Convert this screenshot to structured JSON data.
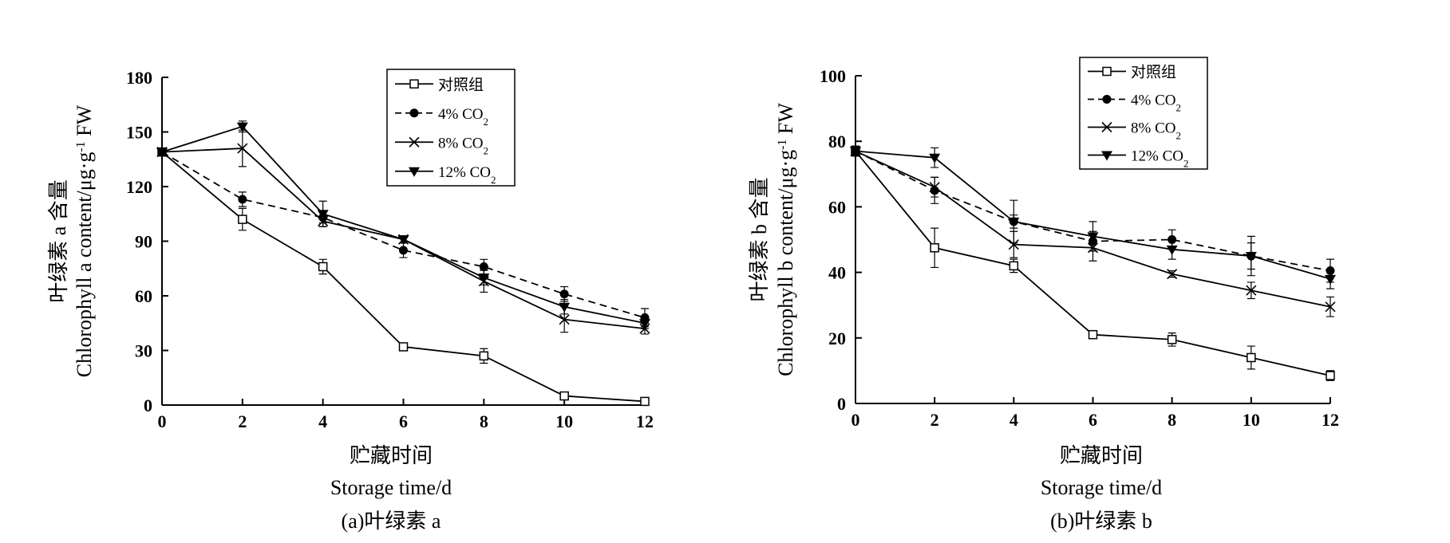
{
  "chart_data": [
    {
      "type": "line",
      "x": [
        0,
        2,
        4,
        6,
        8,
        10,
        12
      ],
      "xlabel_cn": "贮藏时间",
      "xlabel_en": "Storage time/d",
      "ylabel_cn": "叶绿素 a 含量",
      "ylabel_en_prefix": "Chlorophyll a content/μg·g",
      "ylabel_en_sup": "-1",
      "ylabel_en_suffix": " FW",
      "ylim": [
        0,
        180
      ],
      "xlim": [
        0,
        12
      ],
      "yticks": [
        0,
        30,
        60,
        90,
        120,
        150,
        180
      ],
      "xticks": [
        0,
        2,
        4,
        6,
        8,
        10,
        12
      ],
      "caption": "(a)叶绿素 a",
      "legend_position": "top-right",
      "series": [
        {
          "name": "对照组",
          "name_sub": "",
          "marker": "open-square",
          "dash": false,
          "values": [
            139,
            102,
            76,
            32,
            27,
            5,
            2
          ],
          "errors": [
            2,
            6,
            4,
            2,
            4,
            2,
            1
          ]
        },
        {
          "name": "4% CO",
          "name_sub": "2",
          "marker": "filled-circle",
          "dash": true,
          "values": [
            139,
            113,
            103,
            85,
            76,
            61,
            48
          ],
          "errors": [
            2,
            4,
            3,
            4,
            4,
            4,
            5
          ]
        },
        {
          "name": "8% CO",
          "name_sub": "2",
          "marker": "cross",
          "dash": false,
          "values": [
            139,
            141,
            101,
            91,
            68,
            47,
            42
          ],
          "errors": [
            2,
            10,
            3,
            2,
            6,
            7,
            3
          ]
        },
        {
          "name": "12% CO",
          "name_sub": "2",
          "marker": "filled-triangle-down",
          "dash": false,
          "values": [
            139,
            153,
            105,
            91,
            70,
            54,
            45
          ],
          "errors": [
            2,
            3,
            7,
            2,
            4,
            4,
            3
          ]
        }
      ]
    },
    {
      "type": "line",
      "x": [
        0,
        2,
        4,
        6,
        8,
        10,
        12
      ],
      "xlabel_cn": "贮藏时间",
      "xlabel_en": "Storage time/d",
      "ylabel_cn": "叶绿素 b 含量",
      "ylabel_en_prefix": "Chlorophyll b content/μg·g",
      "ylabel_en_sup": "-1",
      "ylabel_en_suffix": " FW",
      "ylim": [
        0,
        100
      ],
      "xlim": [
        0,
        12
      ],
      "yticks": [
        0,
        20,
        40,
        60,
        80,
        100
      ],
      "xticks": [
        0,
        2,
        4,
        6,
        8,
        10,
        12
      ],
      "caption": "(b)叶绿素 b",
      "legend_position": "top-right",
      "series": [
        {
          "name": "对照组",
          "name_sub": "",
          "marker": "open-square",
          "dash": false,
          "values": [
            77,
            47.5,
            42,
            21,
            19.5,
            14,
            8.5
          ],
          "errors": [
            1.5,
            6,
            2,
            1,
            2,
            3.5,
            1.5
          ]
        },
        {
          "name": "4% CO",
          "name_sub": "2",
          "marker": "filled-circle",
          "dash": true,
          "values": [
            77,
            65,
            55.5,
            49.5,
            50,
            45,
            40.5
          ],
          "errors": [
            1.5,
            4,
            2,
            3,
            3,
            4,
            3.5
          ]
        },
        {
          "name": "8% CO",
          "name_sub": "2",
          "marker": "cross",
          "dash": false,
          "values": [
            77,
            66,
            48.5,
            47.5,
            39.5,
            34.5,
            29.5
          ],
          "errors": [
            1.5,
            3,
            4,
            4,
            1,
            2.5,
            3
          ]
        },
        {
          "name": "12% CO",
          "name_sub": "2",
          "marker": "filled-triangle-down",
          "dash": false,
          "values": [
            77,
            75,
            55.5,
            51,
            47,
            45,
            38
          ],
          "errors": [
            1.5,
            3,
            6.5,
            4.5,
            3,
            6,
            3
          ]
        }
      ]
    }
  ]
}
